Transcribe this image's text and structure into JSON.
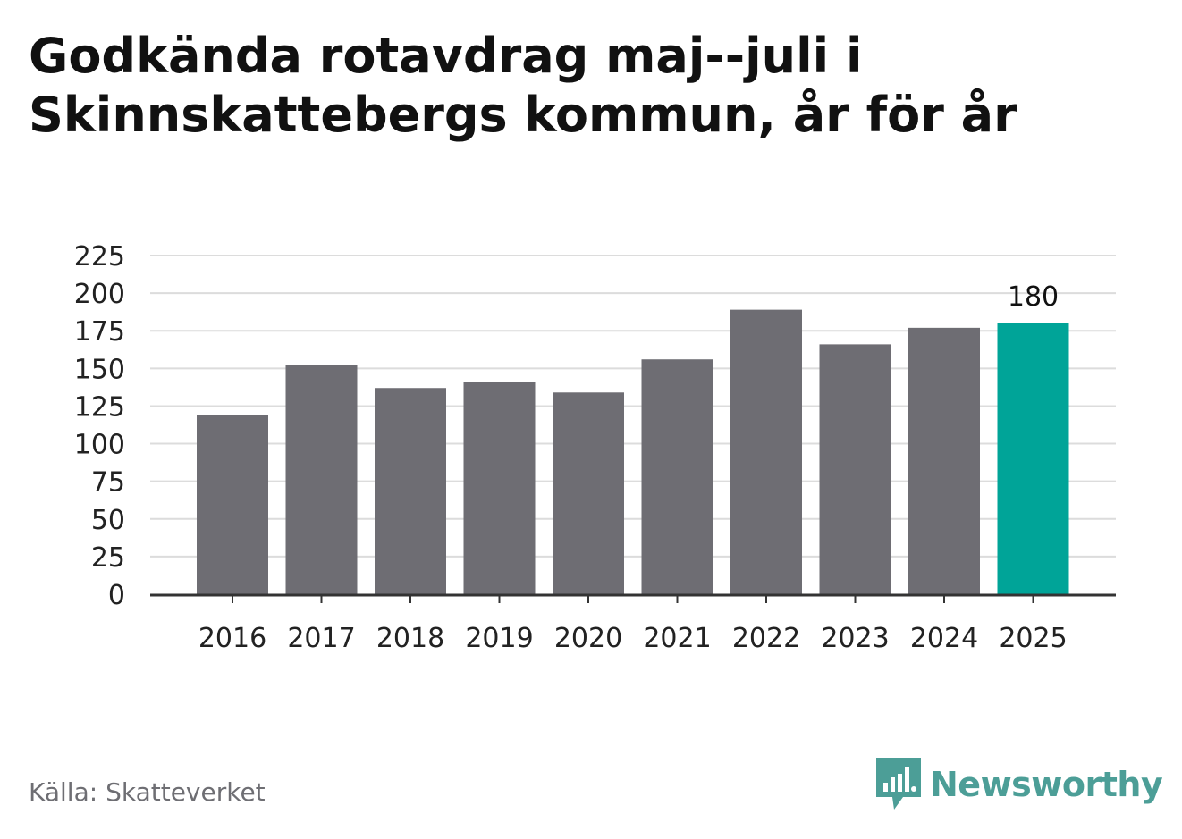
{
  "title": "Godkända rotavdrag maj--juli i Skinnskattebergs kommun, år för år",
  "source": "Källa: Skatteverket",
  "brand": {
    "name": "Newsworthy",
    "icon": "newsworthy-logo-icon",
    "color": "#4c9e97"
  },
  "chart_data": {
    "type": "bar",
    "categories": [
      "2016",
      "2017",
      "2018",
      "2019",
      "2020",
      "2021",
      "2022",
      "2023",
      "2024",
      "2025"
    ],
    "values": [
      119,
      152,
      137,
      141,
      134,
      156,
      189,
      166,
      177,
      180
    ],
    "highlight_index": 9,
    "data_labels": [
      {
        "index": 9,
        "text": "180"
      }
    ],
    "y_ticks": [
      0,
      25,
      50,
      75,
      100,
      125,
      150,
      175,
      200,
      225
    ],
    "ylim": [
      0,
      225
    ],
    "grid": true,
    "colors": {
      "bar": "#6e6d73",
      "highlight": "#00a498",
      "grid": "#dcdcdc",
      "axis": "#333333"
    }
  }
}
